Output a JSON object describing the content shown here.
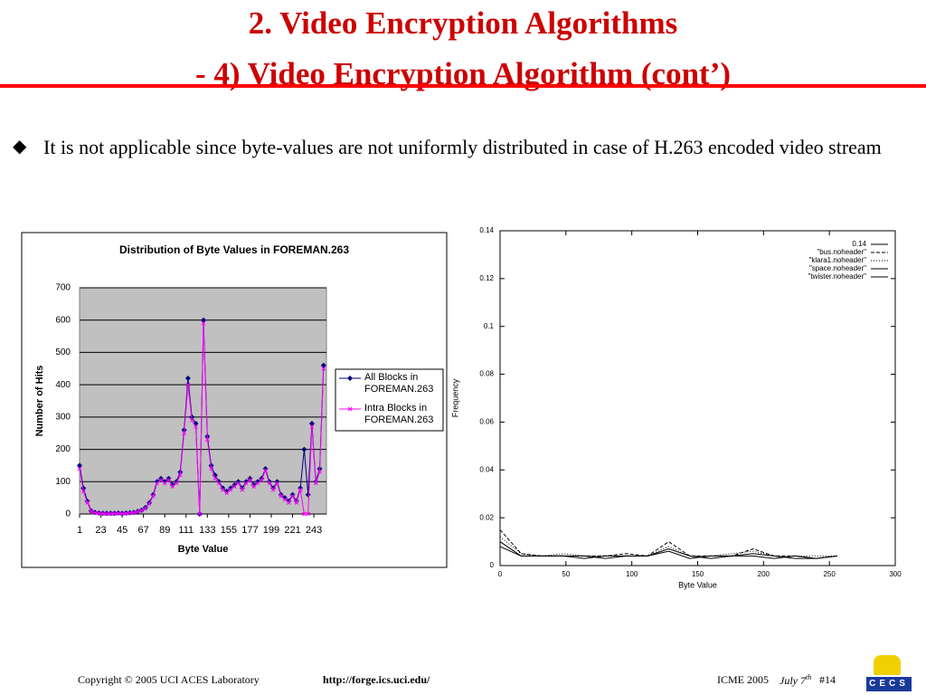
{
  "slide": {
    "title_line1": "2. Video Encryption Algorithms",
    "title_line2": "- 4) Video Encryption Algorithm (cont’)",
    "bullet": "It is not applicable since byte-values are not uniformly distributed in case of H.263 encoded video stream"
  },
  "chart_data": [
    {
      "type": "line",
      "title": "Distribution of Byte Values in FOREMAN.263",
      "x_label": "Byte Value",
      "y_label": "Number of Hits",
      "x": [
        1,
        5,
        9,
        13,
        17,
        21,
        25,
        29,
        33,
        37,
        41,
        45,
        49,
        53,
        57,
        61,
        65,
        69,
        73,
        77,
        81,
        85,
        89,
        93,
        97,
        101,
        105,
        109,
        113,
        117,
        121,
        125,
        129,
        133,
        137,
        141,
        145,
        149,
        153,
        157,
        161,
        165,
        169,
        173,
        177,
        181,
        185,
        189,
        193,
        197,
        201,
        205,
        209,
        213,
        217,
        221,
        225,
        229,
        233,
        237,
        241,
        245,
        249,
        253
      ],
      "series": [
        {
          "name": "All Blocks in FOREMAN.263",
          "color": "#000080",
          "marker": "diamond",
          "values": [
            150,
            80,
            40,
            10,
            5,
            3,
            2,
            2,
            2,
            2,
            3,
            2,
            3,
            4,
            5,
            8,
            12,
            20,
            35,
            60,
            100,
            110,
            100,
            110,
            90,
            100,
            130,
            260,
            420,
            300,
            280,
            0,
            600,
            240,
            150,
            120,
            100,
            80,
            70,
            80,
            90,
            100,
            80,
            100,
            110,
            90,
            100,
            110,
            140,
            100,
            80,
            100,
            60,
            50,
            40,
            60,
            40,
            80,
            200,
            60,
            280,
            100,
            140,
            460
          ]
        },
        {
          "name": "Intra Blocks in FOREMAN.263",
          "color": "#ff00ff",
          "marker": "x",
          "values": [
            140,
            70,
            35,
            8,
            4,
            2,
            1,
            1,
            1,
            1,
            2,
            1,
            2,
            3,
            4,
            7,
            11,
            18,
            32,
            55,
            95,
            105,
            95,
            105,
            85,
            95,
            120,
            250,
            400,
            290,
            270,
            0,
            590,
            230,
            140,
            110,
            95,
            75,
            65,
            75,
            85,
            95,
            75,
            95,
            105,
            85,
            95,
            105,
            135,
            95,
            75,
            95,
            55,
            45,
            35,
            55,
            35,
            75,
            0,
            0,
            270,
            95,
            130,
            450
          ]
        }
      ],
      "xlim": [
        1,
        256
      ],
      "xticks": [
        1,
        23,
        45,
        67,
        89,
        111,
        133,
        155,
        177,
        199,
        221,
        243
      ],
      "ylim": [
        0,
        700
      ],
      "yticks": [
        0,
        100,
        200,
        300,
        400,
        500,
        600,
        700
      ],
      "grid": true,
      "legend": "right",
      "background": "#c0c0c0"
    },
    {
      "type": "line",
      "x_label": "Byte Value",
      "y_label": "Frequency",
      "x": [
        0,
        16,
        32,
        48,
        64,
        80,
        96,
        112,
        128,
        144,
        160,
        176,
        192,
        208,
        224,
        240,
        256
      ],
      "series": [
        {
          "name": "0.14",
          "color": "#000000",
          "dash": "solid",
          "x": [
            0,
            300
          ],
          "values": [
            0.14,
            0.14
          ]
        },
        {
          "name": "\"bus.noheader\"",
          "color": "#000000",
          "dash": "dashed",
          "values": [
            0.015,
            0.005,
            0.004,
            0.004,
            0.004,
            0.004,
            0.005,
            0.004,
            0.01,
            0.004,
            0.004,
            0.004,
            0.007,
            0.004,
            0.004,
            0.003,
            0.004
          ]
        },
        {
          "name": "\"klara1.noheader\"",
          "color": "#000000",
          "dash": "dotted",
          "values": [
            0.012,
            0.005,
            0.004,
            0.005,
            0.004,
            0.004,
            0.004,
            0.004,
            0.008,
            0.004,
            0.004,
            0.005,
            0.006,
            0.004,
            0.004,
            0.004,
            0.004
          ]
        },
        {
          "name": "\"space.noheader\"",
          "color": "#000000",
          "dash": "solid",
          "values": [
            0.01,
            0.004,
            0.004,
            0.004,
            0.003,
            0.004,
            0.004,
            0.004,
            0.007,
            0.004,
            0.003,
            0.004,
            0.005,
            0.004,
            0.003,
            0.003,
            0.004
          ]
        },
        {
          "name": "\"twister.noheader\"",
          "color": "#000000",
          "dash": "solid",
          "values": [
            0.008,
            0.004,
            0.004,
            0.004,
            0.004,
            0.003,
            0.004,
            0.004,
            0.006,
            0.003,
            0.004,
            0.004,
            0.004,
            0.003,
            0.004,
            0.003,
            0.004
          ]
        }
      ],
      "xlim": [
        0,
        300
      ],
      "xticks": [
        0,
        50,
        100,
        150,
        200,
        250,
        300
      ],
      "ylim": [
        0,
        0.14
      ],
      "yticks": [
        0,
        0.02,
        0.04,
        0.06,
        0.08,
        0.1,
        0.12,
        0.14
      ],
      "grid": false,
      "legend": "top-right"
    }
  ],
  "footer": {
    "copyright": "Copyright © 2005  UCI ACES Laboratory",
    "url": "http://forge.ics.uci.edu/",
    "conf": "ICME 2005",
    "date": "July 7",
    "date_sup": "th",
    "page": "#14",
    "logo": "CECS"
  }
}
